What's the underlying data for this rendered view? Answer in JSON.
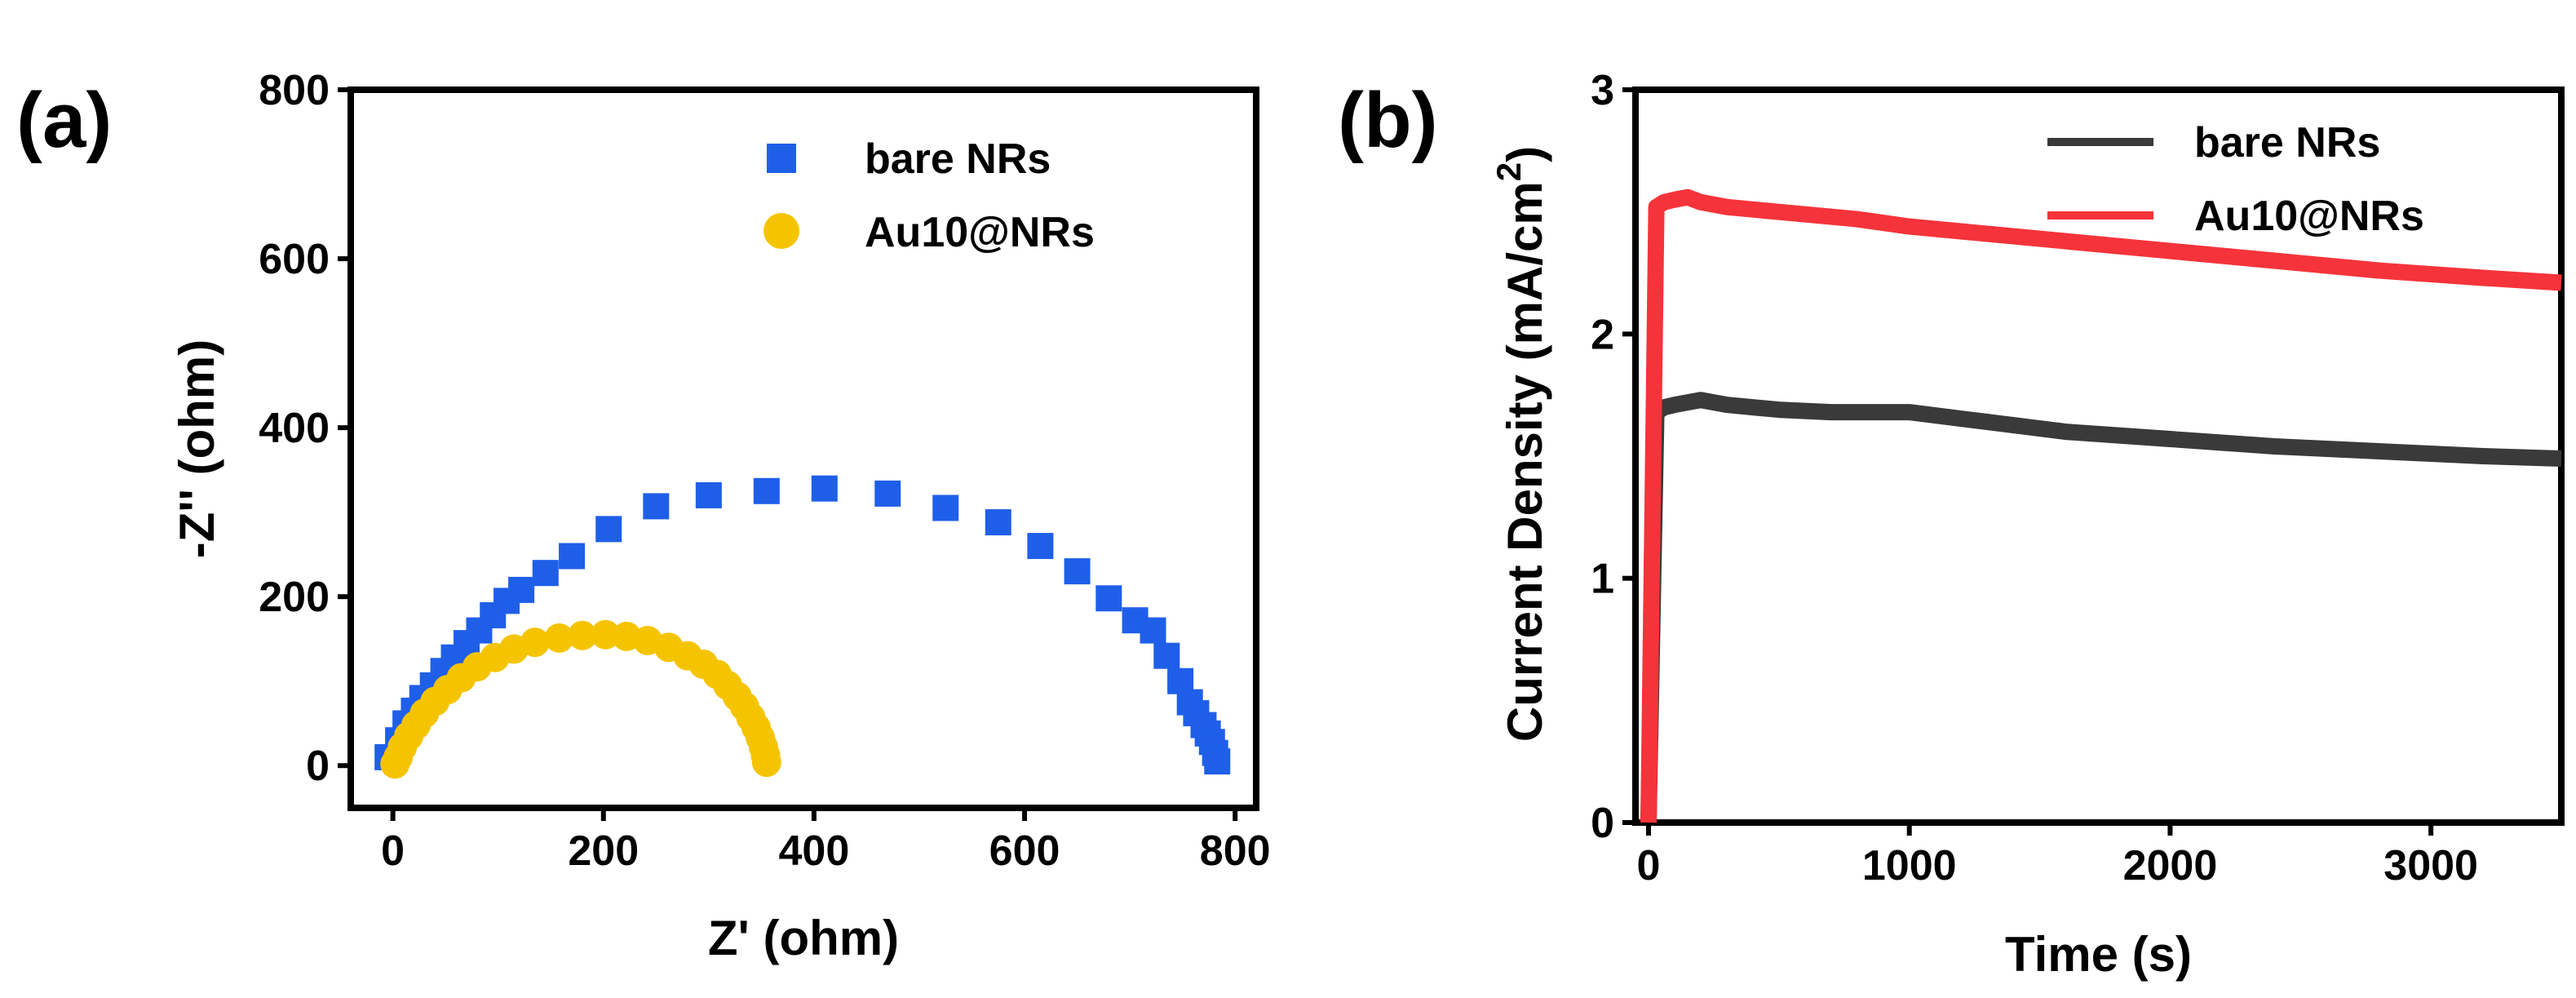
{
  "chart_data": [
    {
      "type": "scatter",
      "panel_label": "(a)",
      "title": "",
      "xlabel": "Z' (ohm)",
      "ylabel": "-Z'' (ohm)",
      "xlim": [
        -40,
        820
      ],
      "ylim": [
        -50,
        800
      ],
      "xticks": [
        0,
        200,
        400,
        600,
        800
      ],
      "yticks": [
        0,
        200,
        400,
        600,
        800
      ],
      "legend_position": "top-right",
      "series": [
        {
          "name": "bare NRs",
          "marker": "square",
          "color": "#1f5fe8",
          "points": [
            [
              -5,
              10
            ],
            [
              5,
              30
            ],
            [
              12,
              50
            ],
            [
              20,
              65
            ],
            [
              28,
              80
            ],
            [
              38,
              95
            ],
            [
              48,
              112
            ],
            [
              58,
              128
            ],
            [
              70,
              145
            ],
            [
              82,
              160
            ],
            [
              95,
              178
            ],
            [
              108,
              195
            ],
            [
              122,
              208
            ],
            [
              145,
              228
            ],
            [
              170,
              248
            ],
            [
              205,
              280
            ],
            [
              250,
              307
            ],
            [
              300,
              320
            ],
            [
              355,
              325
            ],
            [
              410,
              328
            ],
            [
              470,
              322
            ],
            [
              525,
              305
            ],
            [
              575,
              288
            ],
            [
              615,
              260
            ],
            [
              650,
              230
            ],
            [
              680,
              198
            ],
            [
              705,
              172
            ],
            [
              722,
              160
            ],
            [
              735,
              130
            ],
            [
              748,
              100
            ],
            [
              757,
              75
            ],
            [
              763,
              62
            ],
            [
              770,
              48
            ],
            [
              774,
              38
            ],
            [
              778,
              28
            ],
            [
              781,
              15
            ],
            [
              783,
              5
            ]
          ]
        },
        {
          "name": "Au10@NRs",
          "marker": "circle",
          "color": "#f5c400",
          "points": [
            [
              2,
              2
            ],
            [
              5,
              10
            ],
            [
              9,
              22
            ],
            [
              15,
              35
            ],
            [
              22,
              48
            ],
            [
              30,
              62
            ],
            [
              40,
              76
            ],
            [
              52,
              90
            ],
            [
              65,
              104
            ],
            [
              80,
              117
            ],
            [
              97,
              128
            ],
            [
              115,
              138
            ],
            [
              135,
              146
            ],
            [
              158,
              151
            ],
            [
              180,
              154
            ],
            [
              202,
              155
            ],
            [
              222,
              153
            ],
            [
              242,
              148
            ],
            [
              262,
              140
            ],
            [
              280,
              130
            ],
            [
              295,
              120
            ],
            [
              308,
              108
            ],
            [
              318,
              95
            ],
            [
              327,
              82
            ],
            [
              334,
              70
            ],
            [
              340,
              57
            ],
            [
              345,
              45
            ],
            [
              349,
              33
            ],
            [
              352,
              22
            ],
            [
              354,
              12
            ],
            [
              355,
              4
            ]
          ]
        }
      ]
    },
    {
      "type": "line",
      "panel_label": "(b)",
      "title": "",
      "xlabel": "Time (s)",
      "ylabel": "Current  Density (mA/cm",
      "ylabel_superscript": "2",
      "ylabel_close": ")",
      "xlim": [
        -50,
        3500
      ],
      "ylim": [
        0,
        3
      ],
      "xticks": [
        0,
        1000,
        2000,
        3000
      ],
      "yticks": [
        0,
        1,
        2,
        3
      ],
      "legend_position": "top-right",
      "series": [
        {
          "name": "bare NRs",
          "color": "#3a3a3a",
          "x": [
            0,
            30,
            60,
            100,
            200,
            300,
            500,
            700,
            1000,
            1300,
            1600,
            2000,
            2400,
            2800,
            3200,
            3500
          ],
          "y": [
            0,
            1.68,
            1.7,
            1.71,
            1.73,
            1.71,
            1.69,
            1.68,
            1.68,
            1.64,
            1.6,
            1.57,
            1.54,
            1.52,
            1.5,
            1.49
          ]
        },
        {
          "name": "Au10@NRs",
          "color": "#f5333a",
          "x": [
            0,
            30,
            60,
            100,
            150,
            200,
            300,
            500,
            800,
            1000,
            1300,
            1600,
            2000,
            2400,
            2800,
            3200,
            3500
          ],
          "y": [
            0,
            2.52,
            2.54,
            2.55,
            2.56,
            2.54,
            2.52,
            2.5,
            2.47,
            2.44,
            2.41,
            2.38,
            2.34,
            2.3,
            2.26,
            2.23,
            2.21
          ]
        }
      ]
    }
  ]
}
